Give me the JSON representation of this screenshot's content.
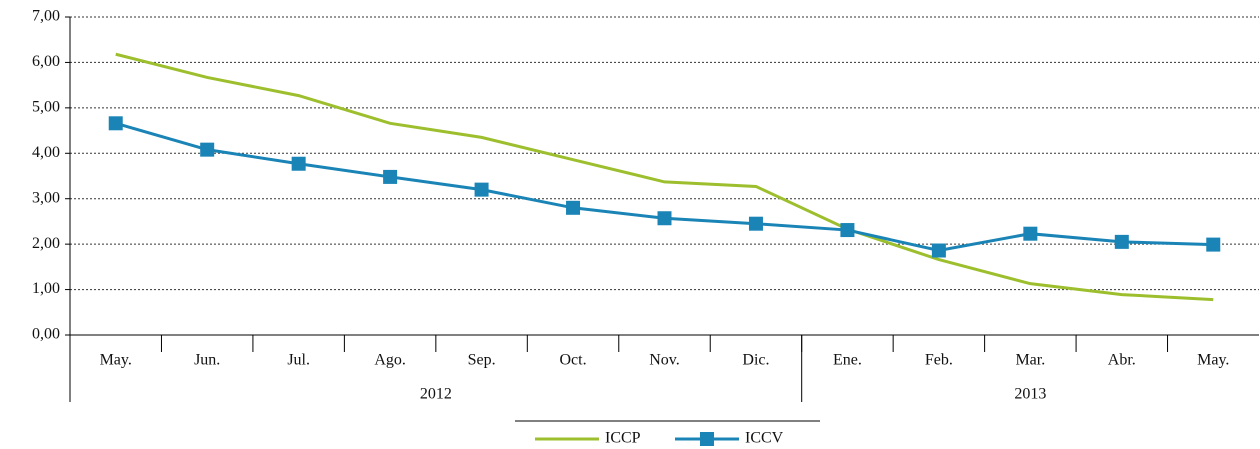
{
  "chart_data": {
    "type": "line",
    "categories": [
      "May.",
      "Jun.",
      "Jul.",
      "Ago.",
      "Sep.",
      "Oct.",
      "Nov.",
      "Dic.",
      "Ene.",
      "Feb.",
      "Mar.",
      "Abr.",
      "May."
    ],
    "groups": [
      {
        "label": "2012",
        "size": 8
      },
      {
        "label": "2013",
        "size": 5
      }
    ],
    "series": [
      {
        "name": "ICCP",
        "color": "#9dbf2d",
        "values": [
          6.18,
          5.67,
          5.27,
          4.66,
          4.35,
          3.86,
          3.37,
          3.27,
          2.33,
          1.66,
          1.13,
          0.89,
          0.78
        ]
      },
      {
        "name": "ICCV",
        "color": "#1a84b6",
        "marker": "square",
        "values": [
          4.66,
          4.08,
          3.77,
          3.48,
          3.2,
          2.8,
          2.57,
          2.45,
          2.31,
          1.86,
          2.23,
          2.05,
          1.99
        ]
      }
    ],
    "ylim": [
      0,
      7
    ],
    "yticks": [
      {
        "value": 0,
        "label": "0,00"
      },
      {
        "value": 1,
        "label": "1,00"
      },
      {
        "value": 2,
        "label": "2,00"
      },
      {
        "value": 3,
        "label": "3,00"
      },
      {
        "value": 4,
        "label": "4,00"
      },
      {
        "value": 5,
        "label": "5,00"
      },
      {
        "value": 6,
        "label": "6,00"
      },
      {
        "value": 7,
        "label": "7,00"
      }
    ],
    "grid": true,
    "legend": "bottom"
  }
}
